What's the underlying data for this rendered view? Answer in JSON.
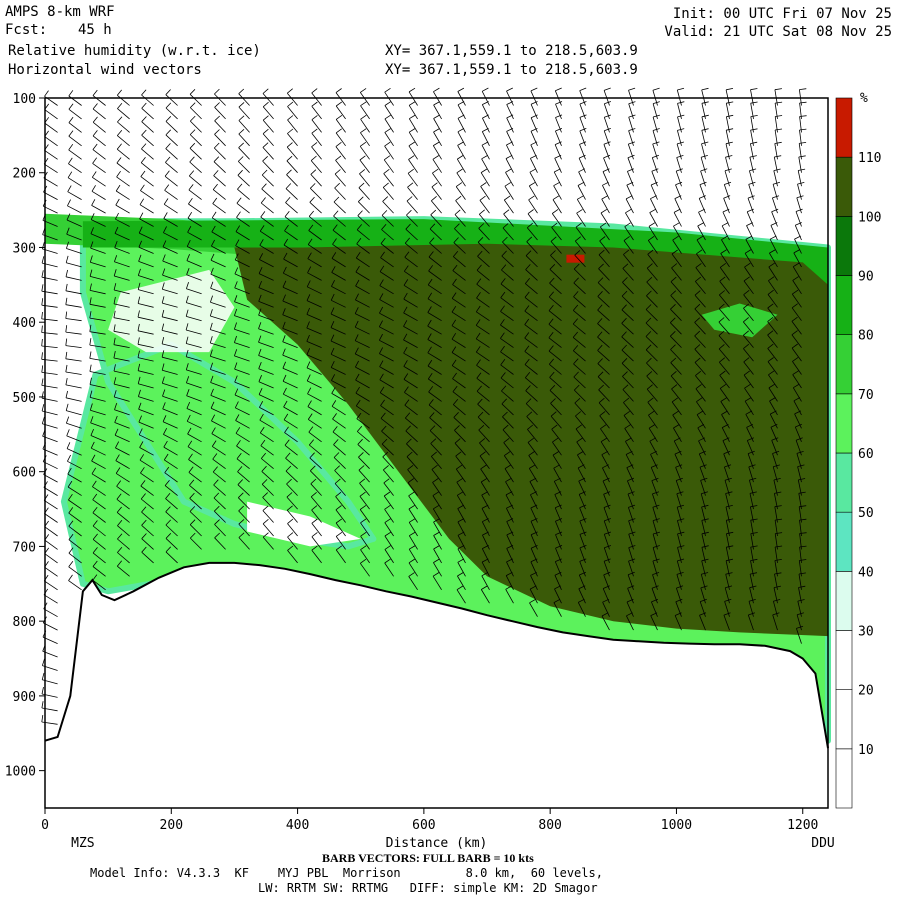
{
  "header": {
    "model": "AMPS 8-km WRF",
    "fcst_label": "Fcst:",
    "fcst_value": "45 h",
    "field1": "Relative humidity (w.r.t. ice)",
    "field2": "Horizontal wind vectors",
    "xy1": "XY= 367.1,559.1 to 218.5,603.9",
    "xy2": "XY= 367.1,559.1 to 218.5,603.9",
    "init": "Init: 00 UTC Fri 07 Nov 25",
    "valid": "Valid: 21 UTC Sat 08 Nov 25"
  },
  "footer": {
    "barb_note": "BARB VECTORS: FULL BARB = 10 kts",
    "model_info": "Model Info: V4.3.3  KF    MYJ PBL  Morrison         8.0 km,  60 levels,",
    "physics": "LW: RRTM SW: RRTMG   DIFF: simple KM: 2D Smagor"
  },
  "chart_data": {
    "type": "heatmap",
    "title": "Relative humidity (w.r.t. ice)",
    "xlabel": "Distance (km)",
    "ylabel": "",
    "x_range": [
      0,
      1240
    ],
    "y_range": [
      100,
      1050
    ],
    "y_reversed": true,
    "x_ticks": [
      0,
      200,
      400,
      600,
      800,
      1000,
      1200
    ],
    "y_ticks": [
      100,
      200,
      300,
      400,
      500,
      600,
      700,
      800,
      900,
      1000
    ],
    "endpoints": {
      "left": "MZS",
      "right": "DDU"
    },
    "colorbar": {
      "unit": "%",
      "levels": [
        10,
        20,
        30,
        40,
        50,
        60,
        70,
        80,
        90,
        100,
        110
      ],
      "colors": [
        "#ffffff",
        "#ffffff",
        "#ffffff",
        "#dcfcee",
        "#5de5c1",
        "#59e8a0",
        "#5cf25c",
        "#35d035",
        "#16b116",
        "#0b780b",
        "#3a5a08",
        "#c81a00"
      ]
    },
    "terrain": [
      [
        0,
        960
      ],
      [
        20,
        955
      ],
      [
        40,
        900
      ],
      [
        60,
        760
      ],
      [
        75,
        745
      ],
      [
        90,
        765
      ],
      [
        110,
        772
      ],
      [
        140,
        760
      ],
      [
        180,
        742
      ],
      [
        220,
        728
      ],
      [
        260,
        722
      ],
      [
        300,
        722
      ],
      [
        340,
        725
      ],
      [
        380,
        730
      ],
      [
        420,
        737
      ],
      [
        460,
        745
      ],
      [
        500,
        752
      ],
      [
        540,
        760
      ],
      [
        580,
        767
      ],
      [
        620,
        775
      ],
      [
        660,
        783
      ],
      [
        700,
        792
      ],
      [
        740,
        800
      ],
      [
        780,
        808
      ],
      [
        820,
        815
      ],
      [
        860,
        820
      ],
      [
        900,
        825
      ],
      [
        940,
        827
      ],
      [
        980,
        829
      ],
      [
        1020,
        830
      ],
      [
        1060,
        831
      ],
      [
        1100,
        831
      ],
      [
        1140,
        833
      ],
      [
        1180,
        840
      ],
      [
        1200,
        850
      ],
      [
        1220,
        870
      ],
      [
        1240,
        970
      ]
    ],
    "humid_layer_top": [
      [
        0,
        255
      ],
      [
        200,
        262
      ],
      [
        400,
        275
      ],
      [
        600,
        278
      ],
      [
        800,
        283
      ],
      [
        1000,
        295
      ],
      [
        1150,
        320
      ],
      [
        1240,
        345
      ]
    ],
    "moist_core": [
      [
        410,
        300
      ],
      [
        700,
        295
      ],
      [
        900,
        300
      ],
      [
        1200,
        320
      ],
      [
        1240,
        350
      ],
      [
        1240,
        820
      ],
      [
        1100,
        815
      ],
      [
        1000,
        810
      ],
      [
        900,
        800
      ],
      [
        800,
        780
      ],
      [
        700,
        740
      ],
      [
        640,
        690
      ],
      [
        560,
        600
      ],
      [
        480,
        510
      ],
      [
        400,
        430
      ],
      [
        320,
        370
      ],
      [
        300,
        300
      ]
    ],
    "moist_outer": [
      [
        60,
        265
      ],
      [
        300,
        265
      ],
      [
        600,
        262
      ],
      [
        900,
        272
      ],
      [
        1240,
        300
      ],
      [
        1240,
        960
      ],
      [
        1200,
        860
      ],
      [
        1100,
        845
      ],
      [
        1000,
        850
      ],
      [
        900,
        840
      ],
      [
        800,
        820
      ],
      [
        700,
        800
      ],
      [
        600,
        780
      ],
      [
        500,
        765
      ],
      [
        400,
        750
      ],
      [
        300,
        735
      ],
      [
        200,
        745
      ],
      [
        100,
        760
      ],
      [
        60,
        750
      ],
      [
        30,
        640
      ],
      [
        80,
        470
      ],
      [
        200,
        430
      ],
      [
        300,
        480
      ],
      [
        400,
        560
      ],
      [
        480,
        640
      ],
      [
        520,
        690
      ],
      [
        480,
        700
      ],
      [
        400,
        690
      ],
      [
        300,
        670
      ],
      [
        220,
        640
      ],
      [
        160,
        560
      ],
      [
        100,
        480
      ],
      [
        60,
        360
      ]
    ],
    "max_rh_marker": {
      "x": 840,
      "y": 315
    }
  }
}
